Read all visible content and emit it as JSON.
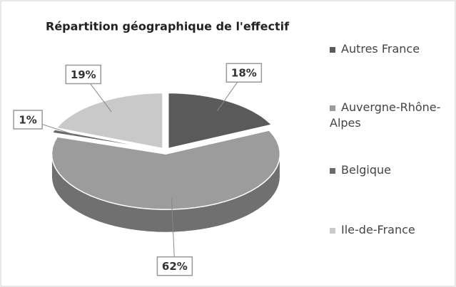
{
  "chart_data": {
    "type": "pie3d",
    "title": "Répartition géographique de l'effectif",
    "categories": [
      "Autres France",
      "Auvergne-Rhône-Alpes",
      "Belgique",
      "Ile-de-France"
    ],
    "values": [
      18,
      62,
      1,
      19
    ],
    "value_labels": [
      "18%",
      "62%",
      "1%",
      "19%"
    ],
    "colors": [
      "#5a5a5a",
      "#9c9c9c",
      "#6a6a6a",
      "#c9c9c9"
    ],
    "legend": "right"
  }
}
